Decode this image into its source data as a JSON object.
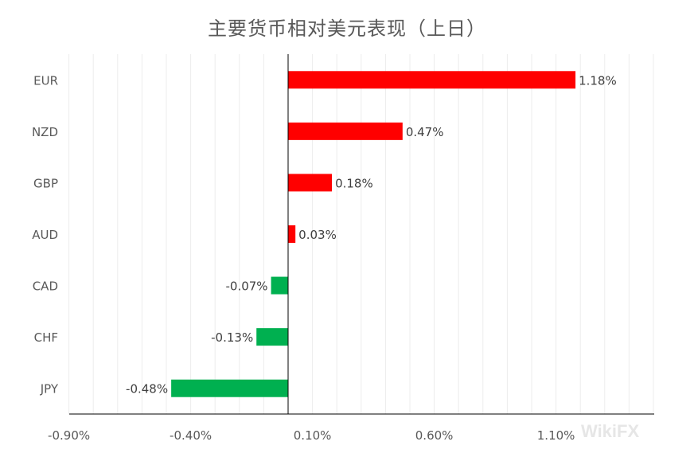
{
  "watermark": "WikiFX",
  "chart_data": {
    "type": "bar",
    "orientation": "horizontal",
    "title": "主要货币相对美元表现（上日）",
    "categories": [
      "EUR",
      "NZD",
      "GBP",
      "AUD",
      "CAD",
      "CHF",
      "JPY"
    ],
    "values": [
      1.18,
      0.47,
      0.18,
      0.03,
      -0.07,
      -0.13,
      -0.48
    ],
    "value_labels": [
      "1.18%",
      "0.47%",
      "0.18%",
      "0.03%",
      "-0.07%",
      "-0.13%",
      "-0.48%"
    ],
    "xlim": [
      -0.9,
      1.6
    ],
    "xticks": [
      -0.9,
      -0.4,
      0.1,
      0.6,
      1.1
    ],
    "xtick_labels": [
      "-0.90%",
      "-0.40%",
      "0.10%",
      "0.60%",
      "1.10%"
    ],
    "colors": {
      "positive": "#ff0000",
      "negative": "#00b050"
    },
    "grid": true,
    "legend": "none"
  }
}
